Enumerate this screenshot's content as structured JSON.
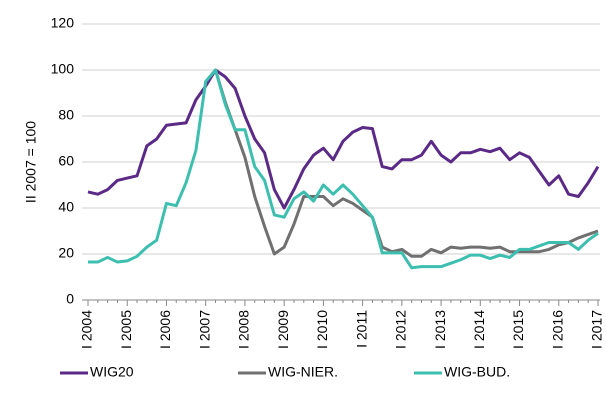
{
  "chart_data": {
    "type": "line",
    "y_label": "II 2007 = 100",
    "categories": [
      "I 2004",
      null,
      null,
      null,
      "I 2005",
      null,
      null,
      null,
      "I 2006",
      null,
      null,
      null,
      "I 2007",
      null,
      null,
      null,
      "I 2008",
      null,
      null,
      null,
      "I 2009",
      null,
      null,
      null,
      "I 2010",
      null,
      null,
      null,
      "I 2011",
      null,
      null,
      null,
      "I 2012",
      null,
      null,
      null,
      "I 2013",
      null,
      null,
      null,
      "I 2014",
      null,
      null,
      null,
      "I 2015",
      null,
      null,
      null,
      "I 2016",
      null,
      null,
      null,
      "I 2017"
    ],
    "series": [
      {
        "name": "WIG20",
        "color": "#5b2a86",
        "values": [
          47,
          46,
          48,
          52,
          53,
          54,
          67,
          70,
          76,
          76.5,
          77,
          87,
          93,
          100,
          97,
          92,
          80,
          70,
          64,
          48,
          40,
          48,
          57,
          63,
          66,
          61,
          69,
          73,
          75,
          74.5,
          58,
          57,
          61,
          61,
          63,
          69,
          63,
          60,
          64,
          64,
          65.5,
          64.5,
          66,
          61,
          64,
          62,
          56,
          50,
          54,
          46,
          45,
          51,
          58
        ]
      },
      {
        "name": "WIG-NIER.",
        "color": "#707070",
        "values": [
          null,
          null,
          null,
          null,
          null,
          null,
          null,
          null,
          null,
          null,
          null,
          null,
          null,
          100,
          86,
          74,
          62,
          45,
          32,
          20,
          23,
          33,
          45,
          45,
          45,
          41,
          44,
          42,
          39,
          36,
          23,
          21,
          22,
          19,
          19,
          22,
          20.5,
          23,
          22.5,
          23,
          23,
          22.5,
          23,
          21,
          21,
          21,
          21,
          22,
          24,
          25,
          27,
          28.5,
          30
        ]
      },
      {
        "name": "WIG-BUD.",
        "color": "#3dbfb0",
        "values": [
          16.5,
          16.5,
          18.5,
          16.5,
          17,
          19,
          23,
          26,
          42,
          41,
          51,
          65,
          95,
          100,
          85,
          74,
          74,
          58,
          52,
          37,
          36,
          44,
          47,
          43,
          50,
          46,
          50,
          46,
          41,
          36,
          20.5,
          20.5,
          20.5,
          14,
          14.5,
          14.5,
          14.5,
          16,
          17.5,
          19.5,
          19.5,
          18,
          19.5,
          18.5,
          22,
          22,
          23.5,
          25,
          25,
          25,
          22,
          26,
          29
        ]
      }
    ],
    "ylim": [
      0,
      120
    ],
    "yticks": [
      0,
      20,
      40,
      60,
      80,
      100,
      120
    ],
    "grid": true,
    "legend": "bottom"
  }
}
